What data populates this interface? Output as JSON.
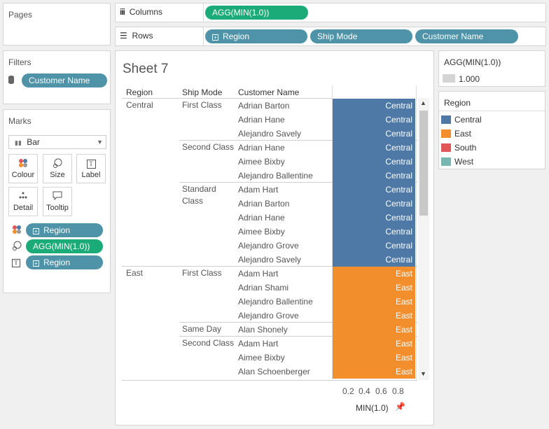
{
  "pages": {
    "title": "Pages"
  },
  "columns_shelf": {
    "label": "Columns",
    "pill": "AGG(MIN(1.0))"
  },
  "rows_shelf": {
    "label": "Rows",
    "pills": [
      "Region",
      "Ship Mode",
      "Customer Name"
    ]
  },
  "filters": {
    "title": "Filters",
    "pill": "Customer Name"
  },
  "marks": {
    "title": "Marks",
    "type": "Bar",
    "buttons": [
      "Colour",
      "Size",
      "Label",
      "Detail",
      "Tooltip"
    ],
    "fields": [
      "Region",
      "AGG(MIN(1.0))",
      "Region"
    ]
  },
  "sheet": {
    "title": "Sheet 7",
    "headers": [
      "Region",
      "Ship Mode",
      "Customer Name"
    ],
    "region_values": [
      "Central",
      "East"
    ],
    "ship_modes": [
      "First Class",
      "Second Class",
      "Standard",
      "Class",
      "First Class",
      "Same Day",
      "Second Class"
    ],
    "rows": [
      {
        "customer": "Adrian Barton",
        "region": "Central"
      },
      {
        "customer": "Adrian Hane",
        "region": "Central"
      },
      {
        "customer": "Alejandro Savely",
        "region": "Central"
      },
      {
        "customer": "Adrian Hane",
        "region": "Central"
      },
      {
        "customer": "Aimee Bixby",
        "region": "Central"
      },
      {
        "customer": "Alejandro Ballentine",
        "region": "Central"
      },
      {
        "customer": "Adam Hart",
        "region": "Central"
      },
      {
        "customer": "Adrian Barton",
        "region": "Central"
      },
      {
        "customer": "Adrian Hane",
        "region": "Central"
      },
      {
        "customer": "Aimee Bixby",
        "region": "Central"
      },
      {
        "customer": "Alejandro Grove",
        "region": "Central"
      },
      {
        "customer": "Alejandro Savely",
        "region": "Central"
      },
      {
        "customer": "Adam Hart",
        "region": "East"
      },
      {
        "customer": "Adrian Shami",
        "region": "East"
      },
      {
        "customer": "Alejandro Ballentine",
        "region": "East"
      },
      {
        "customer": "Alejandro Grove",
        "region": "East"
      },
      {
        "customer": "Alan Shonely",
        "region": "East"
      },
      {
        "customer": "Adam Hart",
        "region": "East"
      },
      {
        "customer": "Aimee Bixby",
        "region": "East"
      },
      {
        "customer": "Alan Schoenberger",
        "region": "East"
      }
    ],
    "axis_ticks": [
      "0.2",
      "0.4",
      "0.6",
      "0.8"
    ],
    "axis_title": "MIN(1.0)"
  },
  "size_legend": {
    "title": "AGG(MIN(1.0))",
    "value": "1.000"
  },
  "colour_legend": {
    "title": "Region",
    "items": [
      {
        "name": "Central",
        "color": "#4e79a7"
      },
      {
        "name": "East",
        "color": "#f28e2b"
      },
      {
        "name": "South",
        "color": "#e15759"
      },
      {
        "name": "West",
        "color": "#76b7b2"
      }
    ]
  }
}
